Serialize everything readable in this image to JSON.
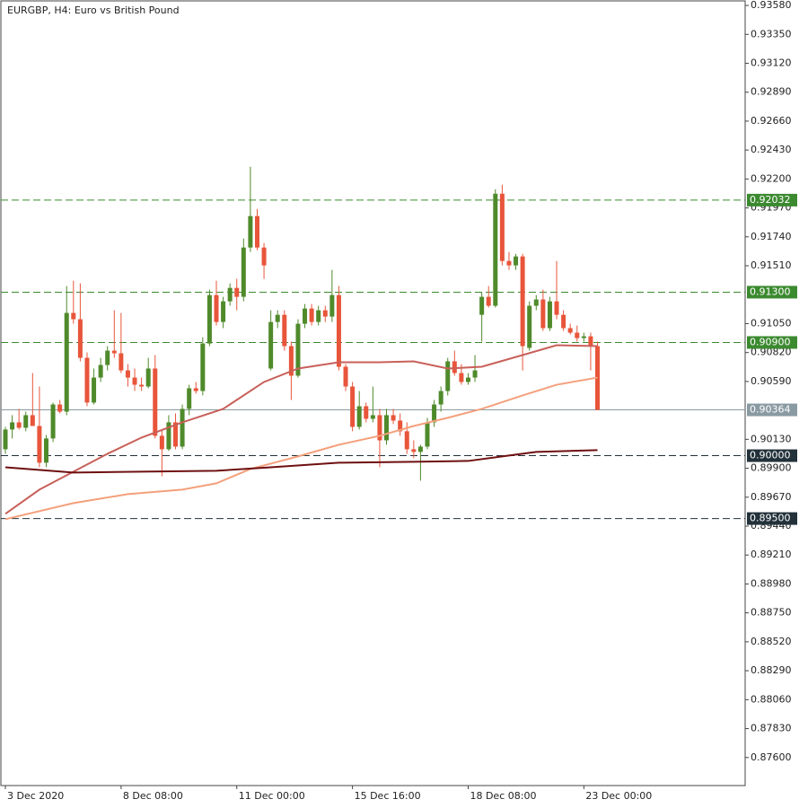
{
  "chart_data": {
    "type": "candlestick",
    "title": "EURGBP, H4:  Euro vs British Pound",
    "xlim": [
      -0.66,
      108.7
    ],
    "ylim": [
      0.87377,
      0.93616
    ],
    "xticks": [
      {
        "value": 0,
        "label": "3 Dec 2020"
      },
      {
        "value": 17,
        "label": "8 Dec 08:00"
      },
      {
        "value": 34,
        "label": "11 Dec 00:00"
      },
      {
        "value": 51,
        "label": "15 Dec 16:00"
      },
      {
        "value": 68,
        "label": "18 Dec 08:00"
      },
      {
        "value": 85,
        "label": "23 Dec 00:00"
      }
    ],
    "yticks": [
      {
        "value": 0.9358,
        "label": "0.93580"
      },
      {
        "value": 0.9335,
        "label": "0.93350"
      },
      {
        "value": 0.9312,
        "label": "0.93120"
      },
      {
        "value": 0.9289,
        "label": "0.92890"
      },
      {
        "value": 0.9266,
        "label": "0.92660"
      },
      {
        "value": 0.9243,
        "label": "0.92430"
      },
      {
        "value": 0.922,
        "label": "0.92200"
      },
      {
        "value": 0.9197,
        "label": "0.91970"
      },
      {
        "value": 0.9174,
        "label": "0.91740"
      },
      {
        "value": 0.9151,
        "label": "0.91510"
      },
      {
        "value": 0.9105,
        "label": "0.91050"
      },
      {
        "value": 0.9082,
        "label": "0.90820"
      },
      {
        "value": 0.9059,
        "label": "0.90590"
      },
      {
        "value": 0.9013,
        "label": "0.90130"
      },
      {
        "value": 0.899,
        "label": "0.89900"
      },
      {
        "value": 0.8967,
        "label": "0.89670"
      },
      {
        "value": 0.8944,
        "label": "0.89440"
      },
      {
        "value": 0.8921,
        "label": "0.89210"
      },
      {
        "value": 0.8898,
        "label": "0.88980"
      },
      {
        "value": 0.8875,
        "label": "0.88750"
      },
      {
        "value": 0.8852,
        "label": "0.88520"
      },
      {
        "value": 0.8829,
        "label": "0.88290"
      },
      {
        "value": 0.8806,
        "label": "0.88060"
      },
      {
        "value": 0.8783,
        "label": "0.87830"
      },
      {
        "value": 0.876,
        "label": "0.87600"
      }
    ],
    "up_color": "#4f8a2b",
    "down_color": "#e8553a",
    "candles": [
      [
        0.90051,
        0.90229,
        0.90015,
        0.90208
      ],
      [
        0.90208,
        0.90322,
        0.90137,
        0.90265
      ],
      [
        0.90265,
        0.90372,
        0.90208,
        0.90222
      ],
      [
        0.90222,
        0.9035,
        0.90194,
        0.90322
      ],
      [
        0.90322,
        0.90657,
        0.90251,
        0.90236
      ],
      [
        0.90236,
        0.9055,
        0.89908,
        0.89944
      ],
      [
        0.89944,
        0.90165,
        0.89908,
        0.90137
      ],
      [
        0.90137,
        0.90422,
        0.90108,
        0.90407
      ],
      [
        0.90407,
        0.90443,
        0.90336,
        0.9035
      ],
      [
        0.9035,
        0.91349,
        0.90322,
        0.91135
      ],
      [
        0.91135,
        0.91391,
        0.91049,
        0.91085
      ],
      [
        0.91085,
        0.9137,
        0.9075,
        0.90778
      ],
      [
        0.90778,
        0.90821,
        0.90393,
        0.90422
      ],
      [
        0.90422,
        0.90693,
        0.90407,
        0.90621
      ],
      [
        0.90621,
        0.90778,
        0.90586,
        0.90721
      ],
      [
        0.90721,
        0.90871,
        0.90678,
        0.90835
      ],
      [
        0.90835,
        0.91156,
        0.90778,
        0.90814
      ],
      [
        0.90814,
        0.91135,
        0.90657,
        0.90678
      ],
      [
        0.90678,
        0.90728,
        0.9055,
        0.90621
      ],
      [
        0.90621,
        0.90693,
        0.90514,
        0.90564
      ],
      [
        0.90564,
        0.90621,
        0.90514,
        0.9055
      ],
      [
        0.9055,
        0.90778,
        0.90536,
        0.90693
      ],
      [
        0.90693,
        0.908,
        0.90137,
        0.90158
      ],
      [
        0.90158,
        0.90208,
        0.89837,
        0.90051
      ],
      [
        0.90051,
        0.90322,
        0.90037,
        0.90265
      ],
      [
        0.90265,
        0.90336,
        0.90051,
        0.90072
      ],
      [
        0.90072,
        0.90407,
        0.90051,
        0.90372
      ],
      [
        0.90372,
        0.90564,
        0.90322,
        0.90536
      ],
      [
        0.90536,
        0.90586,
        0.90493,
        0.90514
      ],
      [
        0.90514,
        0.90942,
        0.90479,
        0.90892
      ],
      [
        0.90892,
        0.9132,
        0.90871,
        0.91277
      ],
      [
        0.91277,
        0.91391,
        0.91035,
        0.91063
      ],
      [
        0.91063,
        0.91263,
        0.91014,
        0.91227
      ],
      [
        0.91227,
        0.9137,
        0.91192,
        0.91334
      ],
      [
        0.91334,
        0.91406,
        0.91156,
        0.91263
      ],
      [
        0.91263,
        0.91727,
        0.91227,
        0.91655
      ],
      [
        0.91655,
        0.92297,
        0.9162,
        0.91905
      ],
      [
        0.91905,
        0.91962,
        0.91634,
        0.91655
      ],
      [
        0.91655,
        0.91691,
        0.91406,
        0.91513
      ],
      [
        0.90693,
        0.91156,
        0.90678,
        0.91063
      ],
      [
        0.91063,
        0.91156,
        0.91014,
        0.9112
      ],
      [
        0.9112,
        0.91156,
        0.90835,
        0.90871
      ],
      [
        0.90871,
        0.90907,
        0.90443,
        0.90636
      ],
      [
        0.90636,
        0.91085,
        0.90621,
        0.91049
      ],
      [
        0.91049,
        0.91206,
        0.91014,
        0.9117
      ],
      [
        0.9117,
        0.91206,
        0.91035,
        0.91063
      ],
      [
        0.91063,
        0.91192,
        0.91035,
        0.91156
      ],
      [
        0.91156,
        0.91192,
        0.91063,
        0.91106
      ],
      [
        0.91106,
        0.91477,
        0.91063,
        0.91277
      ],
      [
        0.91277,
        0.91349,
        0.90678,
        0.90707
      ],
      [
        0.90707,
        0.90728,
        0.90514,
        0.9055
      ],
      [
        0.9055,
        0.90586,
        0.90194,
        0.90229
      ],
      [
        0.90229,
        0.90514,
        0.90208,
        0.90393
      ],
      [
        0.90393,
        0.90422,
        0.90265,
        0.90293
      ],
      [
        0.90293,
        0.9055,
        0.90265,
        0.90322
      ],
      [
        0.90322,
        0.90372,
        0.89908,
        0.90122
      ],
      [
        0.90122,
        0.90372,
        0.90087,
        0.90322
      ],
      [
        0.90322,
        0.90372,
        0.90251,
        0.90279
      ],
      [
        0.90279,
        0.90336,
        0.90158,
        0.90194
      ],
      [
        0.90194,
        0.90265,
        0.90015,
        0.90051
      ],
      [
        0.90051,
        0.90122,
        0.8998,
        0.9003
      ],
      [
        0.9003,
        0.90087,
        0.89801,
        0.90072
      ],
      [
        0.90072,
        0.90301,
        0.90051,
        0.90265
      ],
      [
        0.90265,
        0.90443,
        0.90229,
        0.90407
      ],
      [
        0.90407,
        0.9055,
        0.9035,
        0.90514
      ],
      [
        0.90514,
        0.90778,
        0.90479,
        0.9075
      ],
      [
        0.9075,
        0.90835,
        0.90636,
        0.90657
      ],
      [
        0.90657,
        0.90728,
        0.90564,
        0.90586
      ],
      [
        0.90586,
        0.90657,
        0.90564,
        0.90621
      ],
      [
        0.90621,
        0.908,
        0.90586,
        0.90678
      ],
      [
        0.9112,
        0.91299,
        0.90907,
        0.91263
      ],
      [
        0.91263,
        0.91349,
        0.91178,
        0.91192
      ],
      [
        0.91192,
        0.92119,
        0.91178,
        0.92083
      ],
      [
        0.92083,
        0.92154,
        0.91513,
        0.91548
      ],
      [
        0.91548,
        0.9162,
        0.91477,
        0.91513
      ],
      [
        0.91513,
        0.91605,
        0.91477,
        0.91584
      ],
      [
        0.91584,
        0.91605,
        0.90678,
        0.90871
      ],
      [
        0.90857,
        0.91227,
        0.90835,
        0.91192
      ],
      [
        0.91192,
        0.91277,
        0.91156,
        0.91242
      ],
      [
        0.91242,
        0.9132,
        0.90992,
        0.91014
      ],
      [
        0.91014,
        0.91263,
        0.90992,
        0.91227
      ],
      [
        0.91227,
        0.91548,
        0.91085,
        0.9112
      ],
      [
        0.9112,
        0.91156,
        0.90992,
        0.91014
      ],
      [
        0.91014,
        0.91049,
        0.90964,
        0.90978
      ],
      [
        0.90978,
        0.91035,
        0.90907,
        0.90935
      ],
      [
        0.90935,
        0.90978,
        0.90907,
        0.90949
      ],
      [
        0.90949,
        0.90978,
        0.90678,
        0.90871
      ],
      [
        0.90871,
        0.90907,
        0.90364,
        0.90364
      ]
    ],
    "lines": [
      {
        "color": "#c8605a",
        "x": [
          0,
          5,
          10,
          15,
          20,
          26,
          32,
          38,
          43,
          49,
          55,
          60,
          65,
          70,
          76,
          81,
          87
        ],
        "values": [
          0.89538,
          0.8973,
          0.89873,
          0.90015,
          0.90144,
          0.90265,
          0.90372,
          0.90586,
          0.90693,
          0.90743,
          0.90743,
          0.9075,
          0.90693,
          0.90707,
          0.908,
          0.90878,
          0.90871
        ]
      },
      {
        "color": "#f4a07c",
        "x": [
          0,
          10,
          18,
          26,
          31,
          36,
          43,
          49,
          55,
          60,
          65,
          70,
          76,
          81,
          87
        ],
        "values": [
          0.89495,
          0.89623,
          0.89694,
          0.8973,
          0.8978,
          0.89894,
          0.89994,
          0.90087,
          0.90158,
          0.90236,
          0.90301,
          0.90372,
          0.90479,
          0.90564,
          0.90621
        ]
      },
      {
        "color": "#6e0f10",
        "x": [
          0,
          10,
          20,
          31,
          39,
          49,
          60,
          68,
          73,
          78,
          87
        ],
        "values": [
          0.89908,
          0.89866,
          0.89873,
          0.8988,
          0.89908,
          0.89944,
          0.89951,
          0.89958,
          0.89994,
          0.9003,
          0.90044
        ]
      }
    ],
    "levels": [
      {
        "value": 0.92032,
        "color": "#3c8a30",
        "dash": true
      },
      {
        "value": 0.913,
        "label": "0.91300",
        "color": "#3c8a30",
        "dash": true
      },
      {
        "value": 0.909,
        "label": "0.90900",
        "color": "#3c8a30",
        "dash": true
      },
      {
        "value": 0.90364,
        "color": "#8a9aa2",
        "dash": false
      },
      {
        "value": 0.9,
        "label": "0.90000",
        "color": "#22313a",
        "dash": true
      },
      {
        "value": 0.895,
        "label": "0.89500",
        "color": "#22313a",
        "dash": true
      }
    ]
  }
}
